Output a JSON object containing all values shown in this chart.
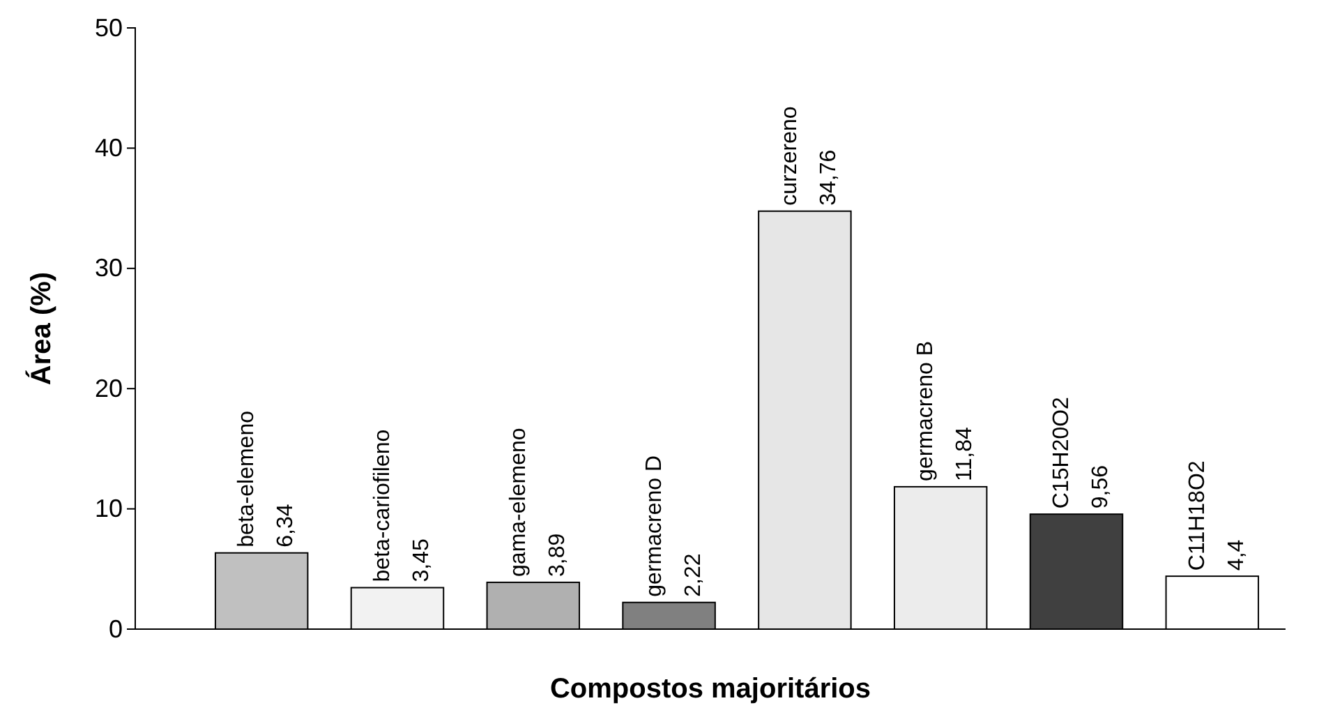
{
  "chart_data": {
    "type": "bar",
    "xlabel": "Compostos majoritários",
    "ylabel": "Área (%)",
    "categories": [
      "beta-elemeno",
      "beta-cariofileno",
      "gama-elemeno",
      "germacreno D",
      "curzereno",
      "germacreno B",
      "C15H20O2",
      "C11H18O2"
    ],
    "values": [
      6.34,
      3.45,
      3.89,
      2.22,
      34.76,
      11.84,
      9.56,
      4.4
    ],
    "value_labels": [
      "6,34",
      "3,45",
      "3,89",
      "2,22",
      "34,76",
      "11,84",
      "9,56",
      "4,4"
    ],
    "colors": [
      "#c0c0c0",
      "#f2f2f2",
      "#b0b0b0",
      "#808080",
      "#e6e6e6",
      "#ececec",
      "#404040",
      "#ffffff"
    ],
    "ylim": [
      0,
      50
    ],
    "yticks": [
      0,
      10,
      20,
      30,
      40,
      50
    ],
    "grid": false
  }
}
